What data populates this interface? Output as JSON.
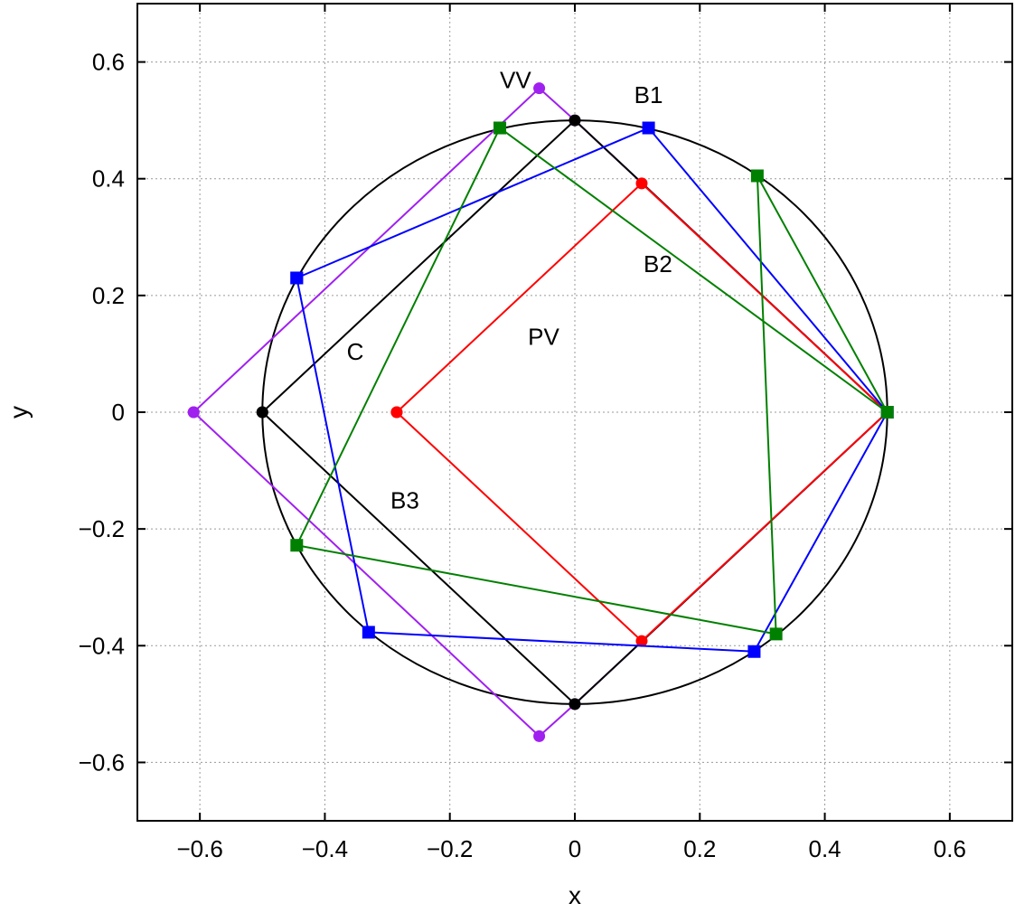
{
  "chart_data": {
    "type": "line",
    "xlabel": "x",
    "ylabel": "y",
    "xlim": [
      -0.7,
      0.7
    ],
    "ylim": [
      -0.7,
      0.7
    ],
    "grid": true,
    "legend": "none",
    "x_ticks": [
      -0.6,
      -0.4,
      -0.2,
      0,
      0.2,
      0.4,
      0.6
    ],
    "y_ticks": [
      -0.6,
      -0.4,
      -0.2,
      0,
      0.2,
      0.4,
      0.6
    ],
    "x_tick_labels": [
      "−0.6",
      "−0.4",
      "−0.2",
      "0",
      "0.2",
      "0.4",
      "0.6"
    ],
    "y_tick_labels": [
      "−0.6",
      "−0.4",
      "−0.2",
      "0",
      "0.2",
      "0.4",
      "0.6"
    ],
    "circle": {
      "center": [
        0,
        0
      ],
      "radius": 0.5,
      "color": "#000000"
    },
    "series": [
      {
        "color": "#a020f0",
        "marker": "circle",
        "points": [
          [
            -0.61,
            0
          ],
          [
            -0.057,
            0.555
          ],
          [
            0,
            0.5
          ],
          [
            0.5,
            0
          ],
          [
            0,
            -0.5
          ],
          [
            -0.057,
            -0.555
          ],
          [
            -0.61,
            0
          ]
        ]
      },
      {
        "color": "#000000",
        "marker": "circle",
        "points": [
          [
            -0.5,
            0
          ],
          [
            0,
            0.5
          ],
          [
            0.5,
            0
          ],
          [
            0,
            -0.5
          ],
          [
            -0.5,
            0
          ]
        ]
      },
      {
        "color": "#ff0000",
        "marker": "circle",
        "points": [
          [
            -0.285,
            0
          ],
          [
            0.107,
            0.392
          ],
          [
            0.5,
            0
          ],
          [
            0.107,
            -0.392
          ],
          [
            -0.285,
            0
          ]
        ]
      },
      {
        "color": "#0000ff",
        "marker": "square",
        "points": [
          [
            -0.445,
            0.23
          ],
          [
            0.118,
            0.487
          ],
          [
            0.5,
            0
          ],
          [
            0.287,
            -0.41
          ],
          [
            -0.33,
            -0.377
          ],
          [
            -0.445,
            0.23
          ]
        ]
      },
      {
        "color": "#008000",
        "marker": "square",
        "points": [
          [
            -0.12,
            0.487
          ],
          [
            0.5,
            0
          ],
          [
            0.292,
            0.405
          ],
          [
            0.322,
            -0.38
          ],
          [
            -0.445,
            -0.228
          ],
          [
            -0.12,
            0.487
          ]
        ]
      }
    ],
    "annotations": [
      {
        "text": "VV",
        "x": -0.12,
        "y": 0.555
      },
      {
        "text": "B1",
        "x": 0.095,
        "y": 0.53
      },
      {
        "text": "B2",
        "x": 0.11,
        "y": 0.24
      },
      {
        "text": "PV",
        "x": -0.075,
        "y": 0.115
      },
      {
        "text": "C",
        "x": -0.365,
        "y": 0.09
      },
      {
        "text": "B3",
        "x": -0.295,
        "y": -0.165
      }
    ]
  }
}
